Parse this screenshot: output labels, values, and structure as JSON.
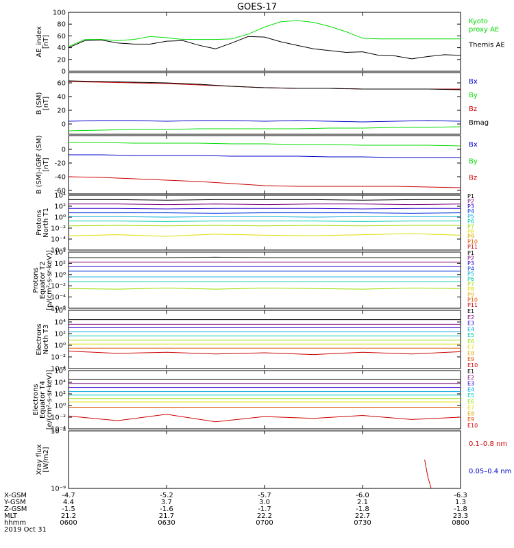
{
  "title": "GOES-17",
  "colors": {
    "black": "#000000",
    "green": "#00dd00",
    "blue": "#0000cc",
    "red": "#cc0000",
    "P1": "#000000",
    "P2": "#7a007a",
    "P3": "#2a00cc",
    "P4": "#0033dd",
    "P5": "#00aadd",
    "P6": "#00ccaa",
    "P7": "#99dd00",
    "P8": "#dddd00",
    "P9": "#ddaa00",
    "P10": "#dd5500",
    "P11": "#cc0000"
  },
  "chart_data": [
    {
      "type": "line",
      "id": "ae",
      "ylabel": [
        "AE_index",
        "[nT]"
      ],
      "ylim": [
        0,
        100
      ],
      "yticks": [
        0,
        20,
        40,
        60,
        80,
        100
      ],
      "x": [
        0,
        5,
        10,
        15,
        20,
        25,
        30,
        35,
        40,
        45,
        50,
        55,
        60,
        65,
        70,
        75,
        80,
        85,
        90,
        95,
        100,
        105,
        110,
        115,
        120
      ],
      "series": [
        {
          "name": "Kyoto proxy AE",
          "legend_lines": [
            "Kyoto",
            "proxy AE"
          ],
          "color": "green",
          "values": [
            42,
            54,
            54,
            52,
            54,
            59,
            57,
            54,
            54,
            54,
            55,
            63,
            75,
            84,
            86,
            83,
            76,
            67,
            56,
            55,
            55,
            55,
            55,
            55,
            55
          ]
        },
        {
          "name": "Themis AE",
          "legend_lines": [
            "Themis AE"
          ],
          "color": "black",
          "values": [
            40,
            52,
            53,
            48,
            46,
            46,
            51,
            52,
            44,
            38,
            48,
            59,
            58,
            50,
            44,
            38,
            35,
            32,
            33,
            27,
            26,
            21,
            25,
            28,
            27
          ]
        }
      ]
    },
    {
      "type": "line",
      "id": "bsm",
      "ylabel": [
        "B (SM)",
        "[nT]"
      ],
      "ylim": [
        -15,
        75
      ],
      "yticks": [
        -20,
        0,
        20,
        40,
        60
      ],
      "x": [
        0,
        10,
        20,
        30,
        40,
        50,
        60,
        70,
        80,
        90,
        100,
        110,
        120
      ],
      "series": [
        {
          "name": "Bx",
          "legend_lines": [
            "Bx"
          ],
          "color": "blue",
          "values": [
            4,
            5,
            5,
            4,
            5,
            5,
            4,
            5,
            4,
            3,
            4,
            5,
            4
          ]
        },
        {
          "name": "By",
          "legend_lines": [
            "By"
          ],
          "color": "green",
          "values": [
            -10,
            -9,
            -8,
            -8,
            -7,
            -7,
            -7,
            -7,
            -6,
            -6,
            -5,
            -5,
            -4
          ]
        },
        {
          "name": "Bz",
          "legend_lines": [
            "Bz"
          ],
          "color": "red",
          "values": [
            62,
            61,
            60,
            59,
            57,
            55,
            53,
            52,
            52,
            51,
            51,
            51,
            51
          ]
        },
        {
          "name": "Bmag",
          "legend_lines": [
            "Bmag"
          ],
          "color": "black",
          "values": [
            63,
            62,
            61,
            60,
            58,
            55,
            53,
            52,
            52,
            51,
            51,
            51,
            50
          ]
        }
      ]
    },
    {
      "type": "line",
      "id": "bigrf",
      "ylabel": [
        "B (SM)-IGRF (SM)",
        "[nT]"
      ],
      "ylim": [
        -65,
        20
      ],
      "yticks": [
        -60,
        -40,
        -20,
        0
      ],
      "x": [
        0,
        10,
        20,
        30,
        40,
        50,
        60,
        70,
        80,
        90,
        100,
        110,
        120
      ],
      "series": [
        {
          "name": "Bx",
          "legend_lines": [
            "Bx"
          ],
          "color": "blue",
          "values": [
            -8,
            -8,
            -9,
            -9,
            -9,
            -10,
            -10,
            -10,
            -11,
            -11,
            -12,
            -12,
            -12
          ]
        },
        {
          "name": "By",
          "legend_lines": [
            "By"
          ],
          "color": "green",
          "values": [
            10,
            10,
            9,
            9,
            9,
            8,
            8,
            7,
            7,
            6,
            6,
            6,
            5
          ]
        },
        {
          "name": "Bz",
          "legend_lines": [
            "Bz"
          ],
          "color": "red",
          "values": [
            -40,
            -41,
            -43,
            -45,
            -47,
            -50,
            -53,
            -54,
            -54,
            -54,
            -54,
            -55,
            -56
          ]
        }
      ]
    },
    {
      "type": "line",
      "id": "pnorth",
      "scale": "log",
      "ylabel": [
        "Protons",
        "North T1"
      ],
      "ylim_exp": [
        -6,
        4
      ],
      "ytick_exps": [
        -6,
        -4,
        -2,
        0,
        2,
        4
      ],
      "labels": [
        "P1",
        "P2",
        "P3",
        "P4",
        "P5",
        "P6",
        "P7",
        "P8",
        "P9",
        "P10",
        "P11"
      ],
      "x": [
        0,
        15,
        30,
        45,
        60,
        75,
        90,
        105,
        120
      ],
      "series": [
        {
          "name": "P1",
          "color": "P1",
          "values": [
            3.2,
            3.2,
            3.1,
            3.2,
            3.2,
            3.2,
            3.1,
            3.2,
            3.2
          ]
        },
        {
          "name": "P2",
          "color": "P2",
          "values": [
            2.4,
            2.4,
            2.3,
            2.4,
            2.3,
            2.4,
            2.4,
            2.3,
            2.4
          ]
        },
        {
          "name": "P3",
          "color": "P3",
          "values": [
            1.6,
            1.6,
            1.5,
            1.6,
            1.6,
            1.6,
            1.5,
            1.6,
            1.6
          ]
        },
        {
          "name": "P4",
          "color": "P4",
          "values": [
            0.8,
            0.8,
            0.8,
            0.7,
            0.8,
            0.8,
            0.8,
            0.7,
            0.8
          ]
        },
        {
          "name": "P5",
          "color": "P5",
          "values": [
            0.1,
            0.1,
            0.0,
            0.1,
            0.1,
            0.0,
            0.1,
            0.1,
            0.1
          ]
        },
        {
          "name": "P6",
          "color": "P6",
          "values": [
            -0.7,
            -0.7,
            -0.8,
            -0.7,
            -0.7,
            -0.7,
            -0.8,
            -0.7,
            -0.7
          ]
        },
        {
          "name": "P7",
          "color": "P7",
          "values": [
            -1.6,
            -1.5,
            -1.6,
            -1.5,
            -1.6,
            -1.5,
            -1.6,
            -1.5,
            -1.5
          ]
        },
        {
          "name": "P8",
          "color": "P8",
          "values": [
            -3.4,
            -3.2,
            -3.5,
            -3.1,
            -3.3,
            -3.4,
            -3.2,
            -3.0,
            -3.3
          ]
        }
      ]
    },
    {
      "type": "line",
      "id": "pequator",
      "scale": "log",
      "ylabel": [
        "Protons",
        "Equator T2",
        "[p/(cm²-s-sr-keV)]"
      ],
      "ylim_exp": [
        -6,
        4
      ],
      "ytick_exps": [
        -6,
        -4,
        -2,
        0,
        2,
        4
      ],
      "labels": [
        "P1",
        "P2",
        "P3",
        "P4",
        "P5",
        "P6",
        "P7",
        "P8",
        "P9",
        "P10",
        "P11"
      ],
      "x": [
        0,
        15,
        30,
        45,
        60,
        75,
        90,
        105,
        120
      ],
      "series": [
        {
          "name": "P1",
          "color": "P1",
          "values": [
            3.0,
            3.0,
            3.0,
            3.1,
            3.0,
            3.0,
            3.0,
            3.0,
            3.0
          ]
        },
        {
          "name": "P2",
          "color": "P2",
          "values": [
            2.2,
            2.2,
            2.2,
            2.2,
            2.2,
            2.2,
            2.2,
            2.2,
            2.2
          ]
        },
        {
          "name": "P3",
          "color": "P3",
          "values": [
            1.4,
            1.4,
            1.4,
            1.4,
            1.4,
            1.4,
            1.4,
            1.4,
            1.4
          ]
        },
        {
          "name": "P4",
          "color": "P4",
          "values": [
            0.6,
            0.6,
            0.6,
            0.6,
            0.6,
            0.6,
            0.6,
            0.6,
            0.6
          ]
        },
        {
          "name": "P5",
          "color": "P5",
          "values": [
            -0.4,
            -0.4,
            -0.4,
            -0.4,
            -0.4,
            -0.4,
            -0.4,
            -0.4,
            -0.4
          ]
        },
        {
          "name": "P6",
          "color": "P6",
          "values": [
            -1.3,
            -1.3,
            -1.3,
            -1.3,
            -1.3,
            -1.3,
            -1.3,
            -1.3,
            -1.3
          ]
        },
        {
          "name": "P7",
          "color": "P7",
          "values": [
            -2.5,
            -2.6,
            -2.4,
            -2.6,
            -2.4,
            -2.5,
            -2.6,
            -2.4,
            -2.5
          ]
        }
      ]
    },
    {
      "type": "line",
      "id": "enorth",
      "scale": "log",
      "ylabel": [
        "Electrons",
        "North T3"
      ],
      "ylim_exp": [
        -4,
        6
      ],
      "ytick_exps": [
        -4,
        -2,
        0,
        2,
        4,
        6
      ],
      "labels": [
        "E1",
        "E2",
        "E3",
        "E4",
        "E5",
        "E6",
        "E7",
        "E8",
        "E9",
        "E10"
      ],
      "x": [
        0,
        15,
        30,
        45,
        60,
        75,
        90,
        105,
        120
      ],
      "series": [
        {
          "name": "E1",
          "color": "P1",
          "values": [
            4.4,
            4.4,
            4.4,
            4.4,
            4.4,
            4.4,
            4.4,
            4.4,
            4.4
          ]
        },
        {
          "name": "E2",
          "color": "P2",
          "values": [
            3.6,
            3.6,
            3.6,
            3.6,
            3.6,
            3.6,
            3.6,
            3.6,
            3.6
          ]
        },
        {
          "name": "E3",
          "color": "P3",
          "values": [
            3.0,
            3.0,
            3.0,
            3.0,
            3.0,
            3.0,
            3.0,
            3.0,
            3.0
          ]
        },
        {
          "name": "E4",
          "color": "P5",
          "values": [
            2.3,
            2.3,
            2.3,
            2.3,
            2.3,
            2.3,
            2.3,
            2.3,
            2.3
          ]
        },
        {
          "name": "E5",
          "color": "P6",
          "values": [
            1.6,
            1.6,
            1.6,
            1.6,
            1.6,
            1.6,
            1.6,
            1.6,
            1.6
          ]
        },
        {
          "name": "E6",
          "color": "P7",
          "values": [
            0.9,
            0.9,
            0.9,
            0.9,
            0.9,
            0.9,
            0.9,
            0.9,
            0.9
          ]
        },
        {
          "name": "E7",
          "color": "P8",
          "values": [
            0.2,
            0.2,
            0.2,
            0.2,
            0.2,
            0.2,
            0.2,
            0.2,
            0.2
          ]
        },
        {
          "name": "E8",
          "color": "P10",
          "values": [
            -0.5,
            -0.5,
            -0.5,
            -0.5,
            -0.5,
            -0.5,
            -0.5,
            -0.5,
            -0.5
          ]
        },
        {
          "name": "E9",
          "color": "P11",
          "values": [
            -1.0,
            -1.4,
            -1.2,
            -1.5,
            -1.3,
            -1.6,
            -1.2,
            -1.5,
            -1.1
          ]
        }
      ]
    },
    {
      "type": "line",
      "id": "eequator",
      "scale": "log",
      "ylabel": [
        "Electrons",
        "Equator T4",
        "[e/(cm²-s-sr-keV)]"
      ],
      "ylim_exp": [
        -4,
        6
      ],
      "ytick_exps": [
        -4,
        -2,
        0,
        2,
        4,
        6
      ],
      "labels": [
        "E1",
        "E2",
        "E3",
        "E4",
        "E5",
        "E6",
        "E7",
        "E8",
        "E9",
        "E10"
      ],
      "x": [
        0,
        15,
        30,
        45,
        60,
        75,
        90,
        105,
        120
      ],
      "series": [
        {
          "name": "E1",
          "color": "P1",
          "values": [
            4.5,
            4.5,
            4.5,
            4.5,
            4.5,
            4.5,
            4.5,
            4.5,
            4.5
          ]
        },
        {
          "name": "E2",
          "color": "P2",
          "values": [
            3.8,
            3.8,
            3.8,
            3.8,
            3.8,
            3.8,
            3.8,
            3.8,
            3.8
          ]
        },
        {
          "name": "E3",
          "color": "P3",
          "values": [
            3.1,
            3.1,
            3.1,
            3.1,
            3.1,
            3.1,
            3.1,
            3.1,
            3.1
          ]
        },
        {
          "name": "E4",
          "color": "P5",
          "values": [
            2.4,
            2.4,
            2.4,
            2.4,
            2.4,
            2.4,
            2.4,
            2.4,
            2.4
          ]
        },
        {
          "name": "E5",
          "color": "P6",
          "values": [
            1.8,
            1.8,
            1.8,
            1.8,
            1.8,
            1.8,
            1.8,
            1.8,
            1.8
          ]
        },
        {
          "name": "E6",
          "color": "P7",
          "values": [
            1.2,
            1.2,
            1.2,
            1.2,
            1.2,
            1.2,
            1.2,
            1.2,
            1.2
          ]
        },
        {
          "name": "E7",
          "color": "P8",
          "values": [
            0.6,
            0.6,
            0.6,
            0.6,
            0.6,
            0.6,
            0.6,
            0.6,
            0.6
          ]
        },
        {
          "name": "E8",
          "color": "P10",
          "values": [
            -0.3,
            -0.3,
            -0.3,
            -0.3,
            -0.3,
            -0.3,
            -0.3,
            -0.3,
            -0.3
          ]
        },
        {
          "name": "E9",
          "color": "P11",
          "values": [
            -1.8,
            -2.6,
            -1.5,
            -2.8,
            -1.9,
            -2.2,
            -1.7,
            -2.4,
            -2.0
          ]
        }
      ]
    },
    {
      "type": "line",
      "id": "xray",
      "scale": "log",
      "ylabel": [
        "Xray flux",
        "[W/m2]"
      ],
      "ylim_exp": [
        -9,
        -8
      ],
      "ytick_labels": [
        {
          "exp": -8,
          "label": "10⁻⁸"
        },
        {
          "exp": -9,
          "label": "10⁻⁹"
        }
      ],
      "legend": [
        {
          "label": "0.1–0.8 nm",
          "color": "red"
        },
        {
          "label": "0.05–0.4 nm",
          "color": "blue"
        }
      ],
      "x": [
        109,
        110,
        111
      ],
      "series": [
        {
          "name": "0.1–0.8 nm",
          "color": "red",
          "values": [
            -8.5,
            -8.8,
            -9.0
          ]
        }
      ]
    }
  ],
  "xaxis": {
    "row_labels": [
      "X-GSM",
      "Y-GSM",
      "Z-GSM",
      "MLT",
      "hhmm",
      "2019 Oct 31"
    ],
    "ticks": [
      {
        "x": 0,
        "values": [
          "-4.7",
          "4.4",
          "-1.5",
          "21.2",
          "0600"
        ]
      },
      {
        "x": 30,
        "values": [
          "-5.2",
          "3.7",
          "-1.6",
          "21.7",
          "0630"
        ]
      },
      {
        "x": 60,
        "values": [
          "-5.7",
          "3.0",
          "-1.7",
          "22.2",
          "0700"
        ]
      },
      {
        "x": 90,
        "values": [
          "-6.0",
          "2.1",
          "-1.8",
          "22.7",
          "0730"
        ]
      },
      {
        "x": 120,
        "values": [
          "-6.3",
          "1.3",
          "-1.8",
          "23.3",
          "0800"
        ]
      }
    ],
    "xlim": [
      0,
      120
    ]
  }
}
